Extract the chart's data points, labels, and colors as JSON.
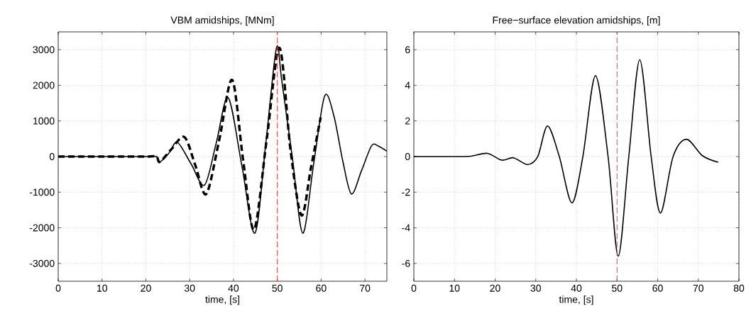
{
  "chart_data": [
    {
      "type": "line",
      "title": "VBM amidships, [MNm]",
      "xlabel": "time, [s]",
      "xlim": [
        0,
        75
      ],
      "ylim": [
        -3500,
        3500
      ],
      "xticks": [
        0,
        10,
        20,
        30,
        40,
        50,
        60,
        70
      ],
      "yticks": [
        -3000,
        -2000,
        -1000,
        0,
        1000,
        2000,
        3000
      ],
      "grid": true,
      "ref_lines": [
        {
          "axis": "x",
          "value": 50,
          "color": "#ff3333",
          "line_style": "dashed"
        }
      ],
      "series": [
        {
          "color": "#000000",
          "line_style": "solid",
          "x": [
            0,
            5,
            10,
            15,
            20,
            22.4,
            23.2,
            25.3,
            27.2,
            30.3,
            33.4,
            36.1,
            38.8,
            41.9,
            44.9,
            47.4,
            49.8,
            51.0,
            53.4,
            55.8,
            58.3,
            60.8,
            62.9,
            64.9,
            66.9,
            69.2,
            71.5,
            73,
            75
          ],
          "values": [
            0,
            0,
            0,
            0,
            0,
            0,
            -150,
            100,
            400,
            -200,
            -800,
            400,
            1650,
            -250,
            -2150,
            400,
            3050,
            2150,
            0,
            -2150,
            -200,
            1700,
            1150,
            -100,
            -1050,
            -400,
            300,
            300,
            150
          ]
        },
        {
          "color": "#000000",
          "line_style": "dashed",
          "x": [
            0,
            5,
            10,
            15,
            20,
            22.4,
            23.2,
            25.8,
            28.8,
            31.3,
            33.8,
            36.8,
            39.7,
            42.2,
            44.7,
            47.6,
            50.5,
            53.0,
            55.5,
            57.7,
            59.9
          ],
          "values": [
            0,
            0,
            0,
            0,
            0,
            0,
            -150,
            200,
            550,
            -250,
            -1050,
            500,
            2150,
            -100,
            -2050,
            500,
            3050,
            200,
            -1650,
            -300,
            1100
          ]
        }
      ]
    },
    {
      "type": "line",
      "title": "Free−surface elevation amidships, [m]",
      "xlabel": "time, [s]",
      "xlim": [
        0,
        80
      ],
      "ylim": [
        -7,
        7
      ],
      "xticks": [
        0,
        10,
        20,
        30,
        40,
        50,
        60,
        70,
        80
      ],
      "yticks": [
        -6,
        -4,
        -2,
        0,
        2,
        4,
        6
      ],
      "grid": true,
      "ref_lines": [
        {
          "axis": "x",
          "value": 50,
          "color": "#ff3333",
          "line_style": "dashed"
        }
      ],
      "series": [
        {
          "color": "#000000",
          "line_style": "solid",
          "x": [
            0,
            5,
            10,
            14,
            18.1,
            21.6,
            24.5,
            28,
            30.5,
            32.9,
            35.8,
            38.9,
            41.6,
            44.7,
            47.8,
            50.3,
            52.9,
            55.6,
            58.4,
            60.7,
            63.8,
            67.1,
            71,
            74.9
          ],
          "values": [
            0,
            0,
            0,
            0.02,
            0.18,
            -0.2,
            -0.07,
            -0.45,
            0,
            1.72,
            0,
            -2.6,
            0,
            4.54,
            0,
            -5.59,
            0,
            5.44,
            0,
            -3.17,
            0,
            0.97,
            0.05,
            -0.32
          ]
        }
      ]
    }
  ]
}
